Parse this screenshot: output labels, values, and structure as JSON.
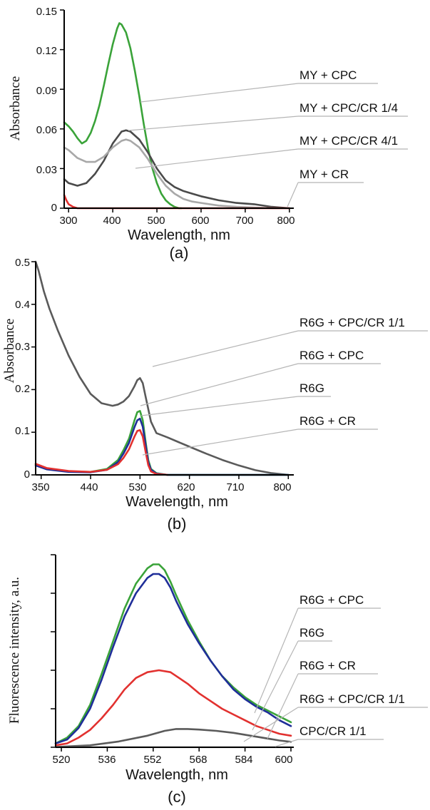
{
  "chart_data": [
    {
      "type": "line",
      "panel": "(a)",
      "xlabel": "Wavelength, nm",
      "ylabel": "Absorbance",
      "xlim": [
        290,
        810
      ],
      "ylim": [
        0,
        0.15
      ],
      "xticks": [
        300,
        400,
        500,
        600,
        700,
        800
      ],
      "yticks": [
        0,
        0.03,
        0.06,
        0.09,
        0.12,
        0.15
      ],
      "ytick_labels": [
        "0",
        "0.03",
        "0.06",
        "0.09",
        "0.12",
        "0.15"
      ],
      "legend_placement": "right, leader lines",
      "series": [
        {
          "name": "MY + CPC",
          "color": "#3aa339",
          "x": [
            290,
            300,
            310,
            320,
            330,
            340,
            350,
            360,
            370,
            380,
            390,
            400,
            410,
            415,
            420,
            430,
            440,
            450,
            460,
            470,
            480,
            490,
            500,
            510,
            520,
            530,
            540,
            550,
            555
          ],
          "y": [
            0.065,
            0.062,
            0.058,
            0.053,
            0.049,
            0.051,
            0.057,
            0.066,
            0.078,
            0.093,
            0.109,
            0.124,
            0.136,
            0.14,
            0.139,
            0.133,
            0.121,
            0.104,
            0.085,
            0.064,
            0.045,
            0.03,
            0.019,
            0.011,
            0.006,
            0.003,
            0.001,
            0.0,
            0.0
          ]
        },
        {
          "name": "MY + CPC/CR 1/4",
          "color": "#4a4a4a",
          "x": [
            290,
            300,
            320,
            340,
            360,
            380,
            400,
            420,
            430,
            440,
            460,
            480,
            500,
            520,
            540,
            560,
            580,
            600,
            640,
            680,
            720,
            760,
            800
          ],
          "y": [
            0.022,
            0.019,
            0.017,
            0.019,
            0.026,
            0.036,
            0.049,
            0.058,
            0.059,
            0.058,
            0.052,
            0.042,
            0.03,
            0.021,
            0.016,
            0.013,
            0.011,
            0.009,
            0.006,
            0.004,
            0.003,
            0.001,
            0.0
          ]
        },
        {
          "name": "MY + CPC/CR 4/1",
          "color": "#a8a8a8",
          "x": [
            290,
            300,
            320,
            340,
            360,
            380,
            400,
            420,
            430,
            440,
            460,
            480,
            500,
            520,
            540,
            560,
            580,
            600,
            640,
            680,
            720,
            760,
            800
          ],
          "y": [
            0.046,
            0.044,
            0.038,
            0.035,
            0.035,
            0.039,
            0.046,
            0.051,
            0.052,
            0.051,
            0.046,
            0.037,
            0.026,
            0.017,
            0.011,
            0.007,
            0.005,
            0.004,
            0.002,
            0.001,
            0.0005,
            0.0,
            0.0
          ]
        },
        {
          "name": "MY + CR",
          "color": "#e2312f",
          "x": [
            290,
            295,
            300,
            310,
            320,
            340,
            400,
            500,
            600,
            700,
            800
          ],
          "y": [
            0.01,
            0.006,
            0.003,
            0.001,
            0.0,
            0.0,
            0.0,
            0.0,
            0.0,
            0.0,
            0.0
          ]
        }
      ]
    },
    {
      "type": "line",
      "panel": "(b)",
      "xlabel": "Wavelength, nm",
      "ylabel": "Absorbance",
      "xlim": [
        340,
        810
      ],
      "ylim": [
        0,
        0.5
      ],
      "xticks": [
        350,
        440,
        530,
        620,
        710,
        800
      ],
      "yticks": [
        0,
        0.1,
        0.2,
        0.3,
        0.4,
        0.5
      ],
      "ytick_labels": [
        "0",
        "0.1",
        "0.2",
        "0.3",
        "0.4",
        "0.5"
      ],
      "legend_placement": "right, leader lines",
      "series": [
        {
          "name": "R6G + CPC/CR 1/1",
          "color": "#5a5a5a",
          "x": [
            340,
            345,
            355,
            365,
            380,
            400,
            420,
            440,
            460,
            480,
            490,
            500,
            510,
            520,
            525,
            530,
            535,
            540,
            550,
            560,
            580,
            600,
            620,
            650,
            680,
            710,
            740,
            770,
            800
          ],
          "y": [
            0.5,
            0.48,
            0.43,
            0.39,
            0.34,
            0.28,
            0.23,
            0.19,
            0.168,
            0.162,
            0.165,
            0.172,
            0.185,
            0.208,
            0.222,
            0.227,
            0.215,
            0.185,
            0.125,
            0.098,
            0.088,
            0.077,
            0.066,
            0.05,
            0.035,
            0.022,
            0.011,
            0.004,
            0.0
          ]
        },
        {
          "name": "R6G + CPC",
          "color": "#3aa339",
          "x": [
            340,
            360,
            400,
            440,
            470,
            490,
            500,
            510,
            520,
            525,
            530,
            535,
            540,
            545,
            550,
            560,
            580,
            620,
            700,
            800
          ],
          "y": [
            0.025,
            0.015,
            0.008,
            0.007,
            0.014,
            0.035,
            0.058,
            0.085,
            0.128,
            0.147,
            0.15,
            0.128,
            0.08,
            0.035,
            0.014,
            0.004,
            0.0,
            0.0,
            0.0,
            0.0
          ]
        },
        {
          "name": "R6G",
          "color": "#1f2e99",
          "x": [
            340,
            360,
            400,
            440,
            470,
            490,
            500,
            510,
            520,
            525,
            530,
            535,
            540,
            545,
            550,
            560,
            580,
            620,
            700,
            800
          ],
          "y": [
            0.022,
            0.013,
            0.007,
            0.006,
            0.012,
            0.03,
            0.05,
            0.075,
            0.112,
            0.128,
            0.132,
            0.113,
            0.072,
            0.03,
            0.012,
            0.003,
            0.0,
            0.0,
            0.0,
            0.0
          ]
        },
        {
          "name": "R6G + CR",
          "color": "#e2312f",
          "x": [
            340,
            360,
            400,
            440,
            470,
            490,
            500,
            510,
            520,
            525,
            530,
            535,
            540,
            545,
            550,
            560,
            580
          ],
          "y": [
            0.026,
            0.016,
            0.009,
            0.007,
            0.012,
            0.025,
            0.04,
            0.06,
            0.09,
            0.103,
            0.105,
            0.09,
            0.056,
            0.023,
            0.008,
            0.002,
            0.0
          ]
        }
      ]
    },
    {
      "type": "line",
      "panel": "(c)",
      "xlabel": "Wavelength, nm",
      "ylabel": "Fluorescence intensity, a.u.",
      "xlim": [
        518,
        601
      ],
      "ylim": [
        0,
        1
      ],
      "xticks": [
        520,
        536,
        552,
        568,
        584,
        600
      ],
      "yticks": [
        0,
        0.2,
        0.4,
        0.6,
        0.8,
        1.0
      ],
      "ytick_labels": [],
      "legend_placement": "right, leader lines",
      "series": [
        {
          "name": "R6G + CPC",
          "color": "#3aa339",
          "x": [
            518,
            522,
            526,
            530,
            534,
            538,
            542,
            546,
            550,
            552,
            554,
            556,
            558,
            560,
            564,
            568,
            572,
            576,
            580,
            584,
            588,
            592,
            596,
            600
          ],
          "y": [
            0.02,
            0.05,
            0.11,
            0.22,
            0.38,
            0.55,
            0.72,
            0.85,
            0.93,
            0.95,
            0.95,
            0.92,
            0.86,
            0.79,
            0.66,
            0.55,
            0.45,
            0.37,
            0.31,
            0.26,
            0.22,
            0.19,
            0.16,
            0.13
          ]
        },
        {
          "name": "R6G",
          "color": "#1f2e99",
          "x": [
            518,
            522,
            526,
            530,
            534,
            538,
            542,
            546,
            550,
            552,
            554,
            556,
            558,
            560,
            564,
            568,
            572,
            576,
            580,
            584,
            588,
            592,
            596,
            600
          ],
          "y": [
            0.02,
            0.04,
            0.1,
            0.2,
            0.35,
            0.52,
            0.68,
            0.8,
            0.88,
            0.9,
            0.9,
            0.88,
            0.83,
            0.76,
            0.64,
            0.54,
            0.45,
            0.37,
            0.3,
            0.25,
            0.21,
            0.18,
            0.14,
            0.11
          ]
        },
        {
          "name": "R6G + CR",
          "color": "#e2312f",
          "x": [
            518,
            522,
            526,
            530,
            534,
            538,
            542,
            546,
            550,
            554,
            558,
            560,
            564,
            568,
            572,
            576,
            580,
            584,
            588,
            592,
            596,
            600
          ],
          "y": [
            0.01,
            0.02,
            0.05,
            0.09,
            0.15,
            0.22,
            0.3,
            0.36,
            0.39,
            0.4,
            0.39,
            0.37,
            0.33,
            0.28,
            0.24,
            0.2,
            0.17,
            0.14,
            0.11,
            0.09,
            0.07,
            0.06
          ]
        },
        {
          "name": "R6G + CPC/CR 1/1",
          "color": "#5a5a5a",
          "x": [
            518,
            530,
            540,
            550,
            556,
            560,
            564,
            568,
            574,
            580,
            588,
            596,
            600
          ],
          "y": [
            0.002,
            0.01,
            0.03,
            0.06,
            0.085,
            0.095,
            0.095,
            0.092,
            0.085,
            0.075,
            0.055,
            0.035,
            0.028
          ]
        },
        {
          "name": "CPC/CR 1/1",
          "color": "#c8c8c8",
          "x": [
            518,
            600
          ],
          "y": [
            0.0,
            0.0
          ]
        }
      ]
    }
  ],
  "labels": {
    "a": {
      "panel": "(a)",
      "xlabel": "Wavelength, nm",
      "ylabel": "Absorbance",
      "xticks": [
        "300",
        "400",
        "500",
        "600",
        "700",
        "800"
      ],
      "yticks": [
        "0",
        "0.03",
        "0.06",
        "0.09",
        "0.12",
        "0.15"
      ],
      "legend": [
        "MY + CPC",
        "MY + CPC/CR 1/4",
        "MY + CPC/CR 4/1",
        "MY + CR"
      ]
    },
    "b": {
      "panel": "(b)",
      "xlabel": "Wavelength, nm",
      "ylabel": "Absorbance",
      "xticks": [
        "350",
        "440",
        "530",
        "620",
        "710",
        "800"
      ],
      "yticks": [
        "0",
        "0.1",
        "0.2",
        "0.3",
        "0.4",
        "0.5"
      ],
      "legend": [
        "R6G + CPC/CR 1/1",
        "R6G + CPC",
        "R6G",
        "R6G + CR"
      ]
    },
    "c": {
      "panel": "(c)",
      "xlabel": "Wavelength, nm",
      "ylabel": "Fluorescence intensity, a.u.",
      "xticks": [
        "520",
        "536",
        "552",
        "568",
        "584",
        "600"
      ],
      "legend": [
        "R6G + CPC",
        "R6G",
        "R6G + CR",
        "R6G + CPC/CR 1/1",
        "CPC/CR 1/1"
      ]
    }
  }
}
